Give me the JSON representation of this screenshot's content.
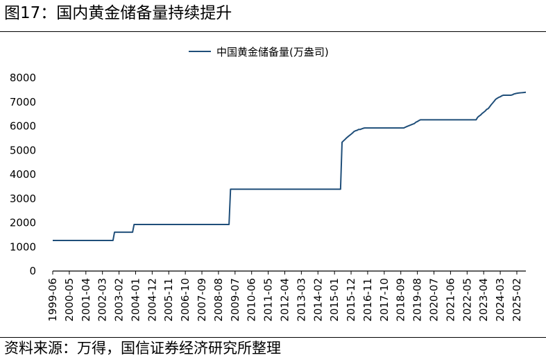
{
  "figure": {
    "title": "图17：国内黄金储备量持续提升",
    "source": "资料来源：万得，国信证券经济研究所整理"
  },
  "colors": {
    "series": "#1f4e79",
    "axis": "#000000"
  },
  "chart_data": {
    "type": "line",
    "title": "",
    "xlabel": "",
    "ylabel": "",
    "ylim": [
      0,
      8000
    ],
    "yticks": [
      0,
      1000,
      2000,
      3000,
      4000,
      5000,
      6000,
      7000,
      8000
    ],
    "xlim": [
      "1999-06",
      "2025-08"
    ],
    "xticks": [
      "1999-06",
      "2000-05",
      "2001-04",
      "2002-03",
      "2003-02",
      "2004-01",
      "2004-12",
      "2005-11",
      "2006-10",
      "2007-09",
      "2008-08",
      "2009-07",
      "2010-06",
      "2011-05",
      "2012-04",
      "2013-03",
      "2014-02",
      "2015-01",
      "2015-12",
      "2016-11",
      "2017-10",
      "2018-09",
      "2019-08",
      "2020-07",
      "2021-06",
      "2022-05",
      "2023-04",
      "2024-03",
      "2025-02"
    ],
    "grid": false,
    "legend": "top-center",
    "series": [
      {
        "name": "中国黄金储备量(万盎司)",
        "points": [
          [
            "1999-06",
            1267
          ],
          [
            "2002-10",
            1267
          ],
          [
            "2002-11",
            1608
          ],
          [
            "2003-11",
            1608
          ],
          [
            "2003-12",
            1929
          ],
          [
            "2009-03",
            1929
          ],
          [
            "2009-04",
            3389
          ],
          [
            "2015-05",
            3389
          ],
          [
            "2015-06",
            5332
          ],
          [
            "2015-07",
            5393
          ],
          [
            "2015-08",
            5452
          ],
          [
            "2015-09",
            5514
          ],
          [
            "2015-10",
            5566
          ],
          [
            "2015-11",
            5618
          ],
          [
            "2015-12",
            5666
          ],
          [
            "2016-01",
            5719
          ],
          [
            "2016-02",
            5780
          ],
          [
            "2016-03",
            5810
          ],
          [
            "2016-04",
            5828
          ],
          [
            "2016-05",
            5862
          ],
          [
            "2016-06",
            5862
          ],
          [
            "2016-07",
            5886
          ],
          [
            "2016-08",
            5910
          ],
          [
            "2016-09",
            5924
          ],
          [
            "2016-10",
            5924
          ],
          [
            "2018-11",
            5924
          ],
          [
            "2018-12",
            5956
          ],
          [
            "2019-01",
            5983
          ],
          [
            "2019-02",
            6010
          ],
          [
            "2019-03",
            6034
          ],
          [
            "2019-04",
            6059
          ],
          [
            "2019-05",
            6083
          ],
          [
            "2019-06",
            6109
          ],
          [
            "2019-07",
            6161
          ],
          [
            "2019-08",
            6192
          ],
          [
            "2019-09",
            6229
          ],
          [
            "2019-10",
            6264
          ],
          [
            "2022-11",
            6264
          ],
          [
            "2022-12",
            6367
          ],
          [
            "2023-01",
            6419
          ],
          [
            "2023-02",
            6464
          ],
          [
            "2023-03",
            6527
          ],
          [
            "2023-04",
            6575
          ],
          [
            "2023-05",
            6626
          ],
          [
            "2023-06",
            6695
          ],
          [
            "2023-07",
            6727
          ],
          [
            "2023-08",
            6804
          ],
          [
            "2023-09",
            6889
          ],
          [
            "2023-10",
            6960
          ],
          [
            "2023-11",
            7035
          ],
          [
            "2023-12",
            7114
          ],
          [
            "2024-01",
            7154
          ],
          [
            "2024-02",
            7192
          ],
          [
            "2024-03",
            7216
          ],
          [
            "2024-04",
            7256
          ],
          [
            "2024-05",
            7280
          ],
          [
            "2024-10",
            7280
          ],
          [
            "2024-11",
            7296
          ],
          [
            "2024-12",
            7329
          ],
          [
            "2025-01",
            7345
          ],
          [
            "2025-02",
            7361
          ],
          [
            "2025-03",
            7370
          ],
          [
            "2025-04",
            7377
          ],
          [
            "2025-05",
            7383
          ],
          [
            "2025-06",
            7390
          ],
          [
            "2025-07",
            7396
          ],
          [
            "2025-08",
            7402
          ]
        ]
      }
    ]
  }
}
